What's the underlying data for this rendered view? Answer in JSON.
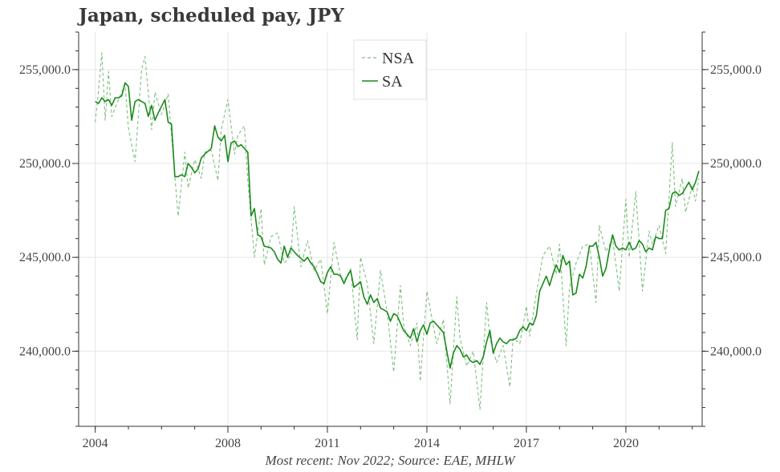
{
  "title": "Japan, scheduled pay, JPY",
  "footer": "Most recent: Nov 2022; Source: EAE, MHLW",
  "colors": {
    "sa": "#1a8a1a",
    "nsa": "#7fbf7f",
    "grid": "#e6e6e6",
    "axis": "#333333"
  },
  "chart_data": {
    "type": "line",
    "title": "Japan, scheduled pay, JPY",
    "xlabel": "",
    "ylabel": "",
    "xlim": [
      2003.5,
      2022.3
    ],
    "ylim": [
      236000,
      257000
    ],
    "x_ticks": [
      2004,
      2008,
      2011,
      2014,
      2017,
      2020
    ],
    "x_tick_labels": [
      "2004",
      "2008",
      "2011",
      "2014",
      "2017",
      "2020"
    ],
    "y_ticks": [
      240000,
      245000,
      250000,
      255000
    ],
    "y_tick_labels": [
      "240,000.0",
      "245,000.0",
      "250,000.0",
      "255,000.0"
    ],
    "legend": [
      "NSA",
      "SA"
    ],
    "legend_position": "top-center",
    "series": [
      {
        "name": "NSA",
        "style": "dashed",
        "points": [
          [
            2004.0,
            252200
          ],
          [
            2004.1,
            253900
          ],
          [
            2004.2,
            255900
          ],
          [
            2004.3,
            252300
          ],
          [
            2004.4,
            254900
          ],
          [
            2004.5,
            252500
          ],
          [
            2004.7,
            253400
          ],
          [
            2004.9,
            254200
          ],
          [
            2005.0,
            251900
          ],
          [
            2005.2,
            250100
          ],
          [
            2005.4,
            255000
          ],
          [
            2005.5,
            255700
          ],
          [
            2005.7,
            251800
          ],
          [
            2005.8,
            253800
          ],
          [
            2006.0,
            252600
          ],
          [
            2006.2,
            253700
          ],
          [
            2006.3,
            251500
          ],
          [
            2006.5,
            247200
          ],
          [
            2006.7,
            250600
          ],
          [
            2006.8,
            248700
          ],
          [
            2007.0,
            250200
          ],
          [
            2007.2,
            249200
          ],
          [
            2007.3,
            250600
          ],
          [
            2007.5,
            250700
          ],
          [
            2007.7,
            249100
          ],
          [
            2007.8,
            251800
          ],
          [
            2008.0,
            253400
          ],
          [
            2008.2,
            250500
          ],
          [
            2008.3,
            251500
          ],
          [
            2008.5,
            252000
          ],
          [
            2008.6,
            249100
          ],
          [
            2008.8,
            245000
          ],
          [
            2009.0,
            247600
          ],
          [
            2009.1,
            244600
          ],
          [
            2009.3,
            246100
          ],
          [
            2009.5,
            246300
          ],
          [
            2009.7,
            244700
          ],
          [
            2009.9,
            245100
          ],
          [
            2010.0,
            247700
          ],
          [
            2010.2,
            244500
          ],
          [
            2010.4,
            245900
          ],
          [
            2010.6,
            244300
          ],
          [
            2010.8,
            244900
          ],
          [
            2011.0,
            242000
          ],
          [
            2011.2,
            245800
          ],
          [
            2011.4,
            244000
          ],
          [
            2011.5,
            243700
          ],
          [
            2011.7,
            244400
          ],
          [
            2011.9,
            240600
          ],
          [
            2012.0,
            245000
          ],
          [
            2012.2,
            243600
          ],
          [
            2012.4,
            240400
          ],
          [
            2012.6,
            244300
          ],
          [
            2012.8,
            242100
          ],
          [
            2013.0,
            238900
          ],
          [
            2013.2,
            243500
          ],
          [
            2013.3,
            241400
          ],
          [
            2013.5,
            240300
          ],
          [
            2013.7,
            241500
          ],
          [
            2013.8,
            238400
          ],
          [
            2014.0,
            243200
          ],
          [
            2014.2,
            241300
          ],
          [
            2014.3,
            240400
          ],
          [
            2014.5,
            241700
          ],
          [
            2014.7,
            237200
          ],
          [
            2014.9,
            242900
          ],
          [
            2015.0,
            240700
          ],
          [
            2015.2,
            239200
          ],
          [
            2015.4,
            240000
          ],
          [
            2015.6,
            236900
          ],
          [
            2015.8,
            242600
          ],
          [
            2015.9,
            240700
          ],
          [
            2016.1,
            239400
          ],
          [
            2016.3,
            240300
          ],
          [
            2016.5,
            238100
          ],
          [
            2016.6,
            240700
          ],
          [
            2016.8,
            240400
          ],
          [
            2017.0,
            242400
          ],
          [
            2017.1,
            240800
          ],
          [
            2017.3,
            243100
          ],
          [
            2017.5,
            245100
          ],
          [
            2017.7,
            245600
          ],
          [
            2017.9,
            244100
          ],
          [
            2018.0,
            245700
          ],
          [
            2018.2,
            240300
          ],
          [
            2018.3,
            243400
          ],
          [
            2018.5,
            244700
          ],
          [
            2018.7,
            245600
          ],
          [
            2018.9,
            245700
          ],
          [
            2019.1,
            242600
          ],
          [
            2019.2,
            246700
          ],
          [
            2019.4,
            245300
          ],
          [
            2019.6,
            246000
          ],
          [
            2019.8,
            243200
          ],
          [
            2020.0,
            248100
          ],
          [
            2020.1,
            245000
          ],
          [
            2020.3,
            248500
          ],
          [
            2020.5,
            243200
          ],
          [
            2020.7,
            246400
          ],
          [
            2020.8,
            245700
          ],
          [
            2021.0,
            246700
          ],
          [
            2021.2,
            245200
          ],
          [
            2021.4,
            251100
          ],
          [
            2021.5,
            247700
          ],
          [
            2021.7,
            249200
          ],
          [
            2021.8,
            247400
          ],
          [
            2022.0,
            248800
          ],
          [
            2022.1,
            248000
          ],
          [
            2022.2,
            249200
          ]
        ]
      },
      {
        "name": "SA",
        "style": "solid",
        "points": [
          [
            2004.0,
            253300
          ],
          [
            2004.1,
            253200
          ],
          [
            2004.2,
            253500
          ],
          [
            2004.3,
            253300
          ],
          [
            2004.4,
            253400
          ],
          [
            2004.5,
            253100
          ],
          [
            2004.6,
            253500
          ],
          [
            2004.7,
            253500
          ],
          [
            2004.8,
            253600
          ],
          [
            2004.9,
            254300
          ],
          [
            2005.0,
            254100
          ],
          [
            2005.1,
            252300
          ],
          [
            2005.2,
            253300
          ],
          [
            2005.3,
            253400
          ],
          [
            2005.5,
            253200
          ],
          [
            2005.6,
            252500
          ],
          [
            2005.7,
            253100
          ],
          [
            2005.8,
            252300
          ],
          [
            2005.9,
            252700
          ],
          [
            2006.1,
            253400
          ],
          [
            2006.2,
            252200
          ],
          [
            2006.3,
            252100
          ],
          [
            2006.4,
            249300
          ],
          [
            2006.5,
            249300
          ],
          [
            2006.6,
            249400
          ],
          [
            2006.7,
            249300
          ],
          [
            2006.8,
            250000
          ],
          [
            2006.9,
            249800
          ],
          [
            2007.0,
            249500
          ],
          [
            2007.1,
            249700
          ],
          [
            2007.2,
            250300
          ],
          [
            2007.3,
            250500
          ],
          [
            2007.5,
            250800
          ],
          [
            2007.6,
            252000
          ],
          [
            2007.7,
            251400
          ],
          [
            2007.8,
            251200
          ],
          [
            2007.9,
            251500
          ],
          [
            2008.0,
            250100
          ],
          [
            2008.1,
            251100
          ],
          [
            2008.2,
            251200
          ],
          [
            2008.3,
            250900
          ],
          [
            2008.4,
            251000
          ],
          [
            2008.5,
            250800
          ],
          [
            2008.6,
            250600
          ],
          [
            2008.7,
            247200
          ],
          [
            2008.8,
            247600
          ],
          [
            2008.9,
            246200
          ],
          [
            2009.0,
            246100
          ],
          [
            2009.1,
            245600
          ],
          [
            2009.3,
            245500
          ],
          [
            2009.4,
            245300
          ],
          [
            2009.5,
            244900
          ],
          [
            2009.6,
            244700
          ],
          [
            2009.7,
            245600
          ],
          [
            2009.8,
            245000
          ],
          [
            2009.9,
            245500
          ],
          [
            2010.0,
            245300
          ],
          [
            2010.1,
            245100
          ],
          [
            2010.3,
            244800
          ],
          [
            2010.4,
            245000
          ],
          [
            2010.5,
            244700
          ],
          [
            2010.6,
            244500
          ],
          [
            2010.7,
            244100
          ],
          [
            2010.8,
            243700
          ],
          [
            2010.9,
            243600
          ],
          [
            2011.0,
            244200
          ],
          [
            2011.1,
            244500
          ],
          [
            2011.2,
            244100
          ],
          [
            2011.3,
            244100
          ],
          [
            2011.4,
            244000
          ],
          [
            2011.5,
            243600
          ],
          [
            2011.6,
            244000
          ],
          [
            2011.7,
            244300
          ],
          [
            2011.8,
            243400
          ],
          [
            2012.0,
            243700
          ],
          [
            2012.1,
            242900
          ],
          [
            2012.2,
            242500
          ],
          [
            2012.3,
            243000
          ],
          [
            2012.4,
            242600
          ],
          [
            2012.5,
            242800
          ],
          [
            2012.6,
            242300
          ],
          [
            2012.7,
            242200
          ],
          [
            2012.8,
            242100
          ],
          [
            2012.9,
            241600
          ],
          [
            2013.0,
            242000
          ],
          [
            2013.1,
            241900
          ],
          [
            2013.2,
            241500
          ],
          [
            2013.3,
            241100
          ],
          [
            2013.4,
            240900
          ],
          [
            2013.5,
            240700
          ],
          [
            2013.6,
            241200
          ],
          [
            2013.7,
            240500
          ],
          [
            2013.8,
            241100
          ],
          [
            2013.9,
            241400
          ],
          [
            2014.0,
            240900
          ],
          [
            2014.1,
            241500
          ],
          [
            2014.2,
            241600
          ],
          [
            2014.3,
            241400
          ],
          [
            2014.4,
            241200
          ],
          [
            2014.5,
            241000
          ],
          [
            2014.6,
            240000
          ],
          [
            2014.7,
            239100
          ],
          [
            2014.8,
            239900
          ],
          [
            2014.9,
            240300
          ],
          [
            2015.0,
            240100
          ],
          [
            2015.1,
            239700
          ],
          [
            2015.2,
            239800
          ],
          [
            2015.3,
            239500
          ],
          [
            2015.4,
            239400
          ],
          [
            2015.5,
            239500
          ],
          [
            2015.6,
            239300
          ],
          [
            2015.7,
            239700
          ],
          [
            2015.8,
            240500
          ],
          [
            2015.9,
            241100
          ],
          [
            2016.0,
            239900
          ],
          [
            2016.1,
            240400
          ],
          [
            2016.2,
            240700
          ],
          [
            2016.3,
            240500
          ],
          [
            2016.4,
            240400
          ],
          [
            2016.5,
            240600
          ],
          [
            2016.6,
            240600
          ],
          [
            2016.7,
            240700
          ],
          [
            2016.8,
            241100
          ],
          [
            2016.9,
            241300
          ],
          [
            2017.0,
            241100
          ],
          [
            2017.1,
            241500
          ],
          [
            2017.2,
            241400
          ],
          [
            2017.3,
            241900
          ],
          [
            2017.4,
            243200
          ],
          [
            2017.5,
            243600
          ],
          [
            2017.6,
            244000
          ],
          [
            2017.7,
            243500
          ],
          [
            2017.8,
            244100
          ],
          [
            2017.9,
            244600
          ],
          [
            2018.0,
            244200
          ],
          [
            2018.1,
            245100
          ],
          [
            2018.2,
            244600
          ],
          [
            2018.3,
            244800
          ],
          [
            2018.4,
            243000
          ],
          [
            2018.5,
            243100
          ],
          [
            2018.6,
            244100
          ],
          [
            2018.7,
            243900
          ],
          [
            2018.8,
            244500
          ],
          [
            2018.9,
            245600
          ],
          [
            2019.0,
            245600
          ],
          [
            2019.1,
            245800
          ],
          [
            2019.2,
            245000
          ],
          [
            2019.3,
            244000
          ],
          [
            2019.4,
            244400
          ],
          [
            2019.5,
            245400
          ],
          [
            2019.6,
            246200
          ],
          [
            2019.7,
            245600
          ],
          [
            2019.8,
            245400
          ],
          [
            2019.9,
            245500
          ],
          [
            2020.0,
            245400
          ],
          [
            2020.1,
            245800
          ],
          [
            2020.2,
            245400
          ],
          [
            2020.3,
            245500
          ],
          [
            2020.4,
            245900
          ],
          [
            2020.5,
            245700
          ],
          [
            2020.6,
            245300
          ],
          [
            2020.7,
            245500
          ],
          [
            2020.8,
            245400
          ],
          [
            2020.9,
            246100
          ],
          [
            2021.0,
            246000
          ],
          [
            2021.1,
            246000
          ],
          [
            2021.2,
            247500
          ],
          [
            2021.3,
            247600
          ],
          [
            2021.4,
            248400
          ],
          [
            2021.5,
            248500
          ],
          [
            2021.6,
            248300
          ],
          [
            2021.7,
            248400
          ],
          [
            2021.8,
            248700
          ],
          [
            2021.9,
            249000
          ],
          [
            2022.0,
            248600
          ],
          [
            2022.1,
            249000
          ],
          [
            2022.2,
            249600
          ]
        ]
      }
    ]
  }
}
